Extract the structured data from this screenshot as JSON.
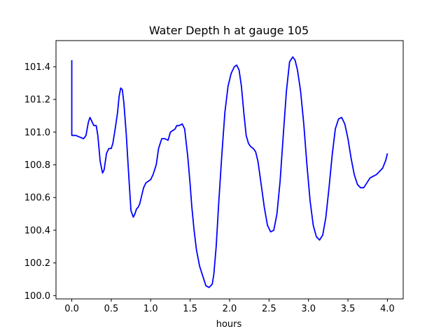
{
  "chart_data": {
    "type": "line",
    "title": "Water Depth h at gauge 105",
    "xlabel": "hours",
    "ylabel": "",
    "xlim": [
      -0.2,
      4.2
    ],
    "ylim": [
      99.98,
      101.56
    ],
    "xticks": [
      0.0,
      0.5,
      1.0,
      1.5,
      2.0,
      2.5,
      3.0,
      3.5,
      4.0
    ],
    "xtick_labels": [
      "0.0",
      "0.5",
      "1.0",
      "1.5",
      "2.0",
      "2.5",
      "3.0",
      "3.5",
      "4.0"
    ],
    "yticks": [
      100.0,
      100.2,
      100.4,
      100.6,
      100.8,
      101.0,
      101.2,
      101.4
    ],
    "ytick_labels": [
      "100.0",
      "100.2",
      "100.4",
      "100.6",
      "100.8",
      "101.0",
      "101.2",
      "101.4"
    ],
    "grid": false,
    "legend": "none",
    "series": [
      {
        "color": "#0000ff",
        "x": [
          0.0,
          0.0,
          0.01,
          0.05,
          0.1,
          0.15,
          0.18,
          0.21,
          0.23,
          0.25,
          0.28,
          0.31,
          0.33,
          0.36,
          0.39,
          0.41,
          0.44,
          0.47,
          0.5,
          0.52,
          0.55,
          0.58,
          0.6,
          0.62,
          0.64,
          0.66,
          0.69,
          0.72,
          0.75,
          0.78,
          0.8,
          0.82,
          0.84,
          0.86,
          0.88,
          0.91,
          0.94,
          0.97,
          1.0,
          1.03,
          1.07,
          1.1,
          1.14,
          1.18,
          1.22,
          1.25,
          1.28,
          1.31,
          1.33,
          1.36,
          1.4,
          1.43,
          1.47,
          1.5,
          1.52,
          1.55,
          1.58,
          1.62,
          1.66,
          1.7,
          1.74,
          1.78,
          1.8,
          1.83,
          1.86,
          1.9,
          1.94,
          1.98,
          2.02,
          2.06,
          2.09,
          2.12,
          2.15,
          2.18,
          2.21,
          2.24,
          2.27,
          2.3,
          2.33,
          2.36,
          2.4,
          2.44,
          2.48,
          2.52,
          2.56,
          2.6,
          2.64,
          2.68,
          2.72,
          2.76,
          2.8,
          2.83,
          2.86,
          2.9,
          2.94,
          2.98,
          3.02,
          3.06,
          3.1,
          3.14,
          3.18,
          3.22,
          3.26,
          3.3,
          3.34,
          3.38,
          3.42,
          3.46,
          3.5,
          3.54,
          3.58,
          3.62,
          3.66,
          3.7,
          3.74,
          3.78,
          3.82,
          3.86,
          3.9,
          3.94,
          3.98,
          4.0
        ],
        "y": [
          101.44,
          100.98,
          100.98,
          100.98,
          100.97,
          100.96,
          100.98,
          101.06,
          101.09,
          101.07,
          101.04,
          101.04,
          100.98,
          100.82,
          100.75,
          100.77,
          100.87,
          100.9,
          100.9,
          100.93,
          101.02,
          101.12,
          101.22,
          101.27,
          101.26,
          101.18,
          100.99,
          100.75,
          100.52,
          100.48,
          100.5,
          100.53,
          100.54,
          100.56,
          100.6,
          100.66,
          100.69,
          100.7,
          100.71,
          100.74,
          100.8,
          100.9,
          100.96,
          100.96,
          100.95,
          101.0,
          101.01,
          101.02,
          101.04,
          101.04,
          101.05,
          101.02,
          100.85,
          100.68,
          100.55,
          100.4,
          100.28,
          100.18,
          100.12,
          100.06,
          100.05,
          100.07,
          100.13,
          100.3,
          100.55,
          100.85,
          101.12,
          101.28,
          101.36,
          101.4,
          101.41,
          101.38,
          101.28,
          101.12,
          100.98,
          100.93,
          100.91,
          100.9,
          100.88,
          100.82,
          100.68,
          100.54,
          100.43,
          100.39,
          100.4,
          100.5,
          100.7,
          100.98,
          101.25,
          101.43,
          101.46,
          101.44,
          101.38,
          101.25,
          101.05,
          100.8,
          100.58,
          100.43,
          100.36,
          100.34,
          100.37,
          100.48,
          100.66,
          100.86,
          101.02,
          101.08,
          101.09,
          101.05,
          100.96,
          100.84,
          100.74,
          100.68,
          100.66,
          100.66,
          100.69,
          100.72,
          100.73,
          100.74,
          100.76,
          100.78,
          100.83,
          100.87
        ]
      }
    ]
  }
}
